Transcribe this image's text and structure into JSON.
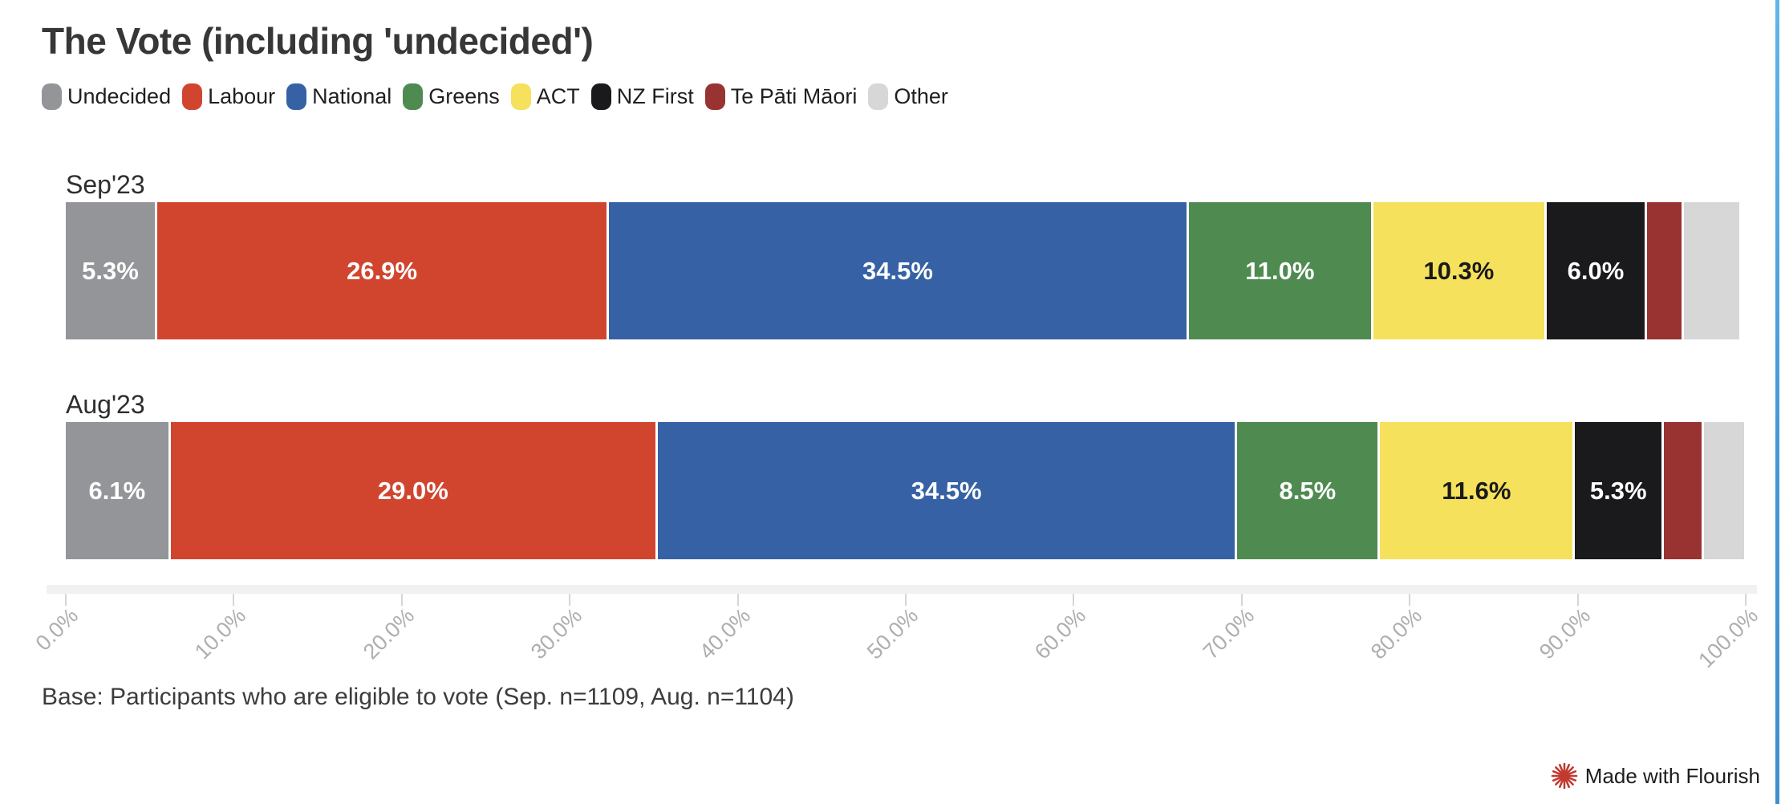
{
  "title": "The Vote (including 'undecided')",
  "legend": {
    "items": [
      {
        "label": "Undecided",
        "color": "#939598"
      },
      {
        "label": "Labour",
        "color": "#d1452f"
      },
      {
        "label": "National",
        "color": "#3662a5"
      },
      {
        "label": "Greens",
        "color": "#4f8b51"
      },
      {
        "label": "ACT",
        "color": "#f5e15b"
      },
      {
        "label": "NZ First",
        "color": "#1a1a1c"
      },
      {
        "label": "Te Pāti Māori",
        "color": "#993332"
      },
      {
        "label": "Other",
        "color": "#d7d7d7"
      }
    ]
  },
  "chart_data": {
    "type": "bar",
    "subtype": "horizontal-stacked",
    "unit": "%",
    "title": "The Vote (including 'undecided')",
    "categories": [
      "Sep'23",
      "Aug'23"
    ],
    "series": [
      {
        "name": "Undecided",
        "color": "#939598",
        "values": [
          5.3,
          6.1
        ]
      },
      {
        "name": "Labour",
        "color": "#d1452f",
        "values": [
          26.9,
          29.0
        ]
      },
      {
        "name": "National",
        "color": "#3662a5",
        "values": [
          34.5,
          34.5
        ]
      },
      {
        "name": "Greens",
        "color": "#4f8b51",
        "values": [
          11.0,
          8.5
        ]
      },
      {
        "name": "ACT",
        "color": "#f5e15b",
        "values": [
          10.3,
          11.6
        ]
      },
      {
        "name": "NZ First",
        "color": "#1a1a1c",
        "values": [
          6.0,
          5.3
        ]
      },
      {
        "name": "Te Pāti Māori",
        "color": "#993332",
        "values": [
          2.2,
          2.4
        ]
      },
      {
        "name": "Other",
        "color": "#d7d7d7",
        "values": [
          3.4,
          2.5
        ]
      }
    ],
    "axis": {
      "range": [
        0,
        100
      ],
      "ticks": [
        "0.0%",
        "10.0%",
        "20.0%",
        "30.0%",
        "40.0%",
        "50.0%",
        "60.0%",
        "70.0%",
        "80.0%",
        "90.0%",
        "100.0%"
      ]
    },
    "legend_position": "top",
    "grid": false
  },
  "rows": [
    {
      "label": "Sep'23",
      "segments": [
        {
          "party": "Undecided",
          "value": 5.3,
          "display": "5.3%",
          "color": "#939598",
          "text": "#ffffff"
        },
        {
          "party": "Labour",
          "value": 26.9,
          "display": "26.9%",
          "color": "#d1452f",
          "text": "#ffffff"
        },
        {
          "party": "National",
          "value": 34.5,
          "display": "34.5%",
          "color": "#3662a5",
          "text": "#ffffff"
        },
        {
          "party": "Greens",
          "value": 11.0,
          "display": "11.0%",
          "color": "#4f8b51",
          "text": "#ffffff"
        },
        {
          "party": "ACT",
          "value": 10.3,
          "display": "10.3%",
          "color": "#f5e15b",
          "text": "#1a1a1a"
        },
        {
          "party": "NZ First",
          "value": 6.0,
          "display": "6.0%",
          "color": "#1a1a1c",
          "text": "#ffffff"
        },
        {
          "party": "Te Pāti Māori",
          "value": 2.2,
          "display": "",
          "color": "#993332",
          "text": "#ffffff"
        },
        {
          "party": "Other",
          "value": 3.4,
          "display": "",
          "color": "#d7d7d7",
          "text": "#1a1a1a"
        }
      ]
    },
    {
      "label": "Aug'23",
      "segments": [
        {
          "party": "Undecided",
          "value": 6.1,
          "display": "6.1%",
          "color": "#939598",
          "text": "#ffffff"
        },
        {
          "party": "Labour",
          "value": 29.0,
          "display": "29.0%",
          "color": "#d1452f",
          "text": "#ffffff"
        },
        {
          "party": "National",
          "value": 34.5,
          "display": "34.5%",
          "color": "#3662a5",
          "text": "#ffffff"
        },
        {
          "party": "Greens",
          "value": 8.5,
          "display": "8.5%",
          "color": "#4f8b51",
          "text": "#ffffff"
        },
        {
          "party": "ACT",
          "value": 11.6,
          "display": "11.6%",
          "color": "#f5e15b",
          "text": "#1a1a1a"
        },
        {
          "party": "NZ First",
          "value": 5.3,
          "display": "5.3%",
          "color": "#1a1a1c",
          "text": "#ffffff"
        },
        {
          "party": "Te Pāti Māori",
          "value": 2.4,
          "display": "",
          "color": "#993332",
          "text": "#ffffff"
        },
        {
          "party": "Other",
          "value": 2.5,
          "display": "",
          "color": "#d7d7d7",
          "text": "#1a1a1a"
        }
      ]
    }
  ],
  "footer": {
    "base_note": "Base: Participants who are eligible to vote (Sep. n=1109, Aug. n=1104)",
    "attribution": "Made with Flourish"
  },
  "accent_colors": {
    "flourish_logo": "#c13a30",
    "edge_line": "#4698d4"
  }
}
